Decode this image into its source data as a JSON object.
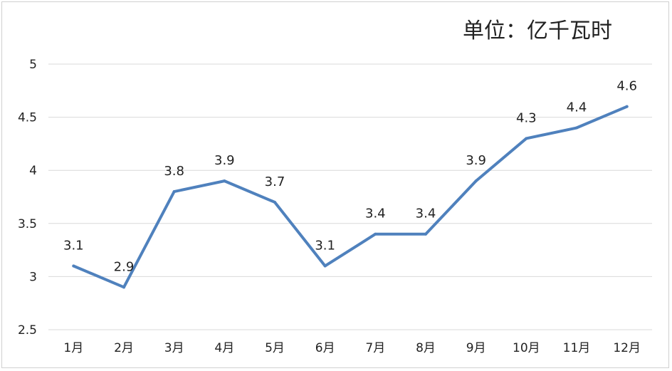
{
  "unit_label": "单位：亿千瓦时",
  "chart_data": {
    "type": "line",
    "title": "",
    "xlabel": "",
    "ylabel": "",
    "categories": [
      "1月",
      "2月",
      "3月",
      "4月",
      "5月",
      "6月",
      "7月",
      "8月",
      "9月",
      "10月",
      "11月",
      "12月"
    ],
    "series": [
      {
        "values": [
          3.1,
          2.9,
          3.8,
          3.9,
          3.7,
          3.1,
          3.4,
          3.4,
          3.9,
          4.3,
          4.4,
          4.6
        ],
        "labels": [
          "3.1",
          "2.9",
          "3.8",
          "3.9",
          "3.7",
          "3.1",
          "3.4",
          "3.4",
          "3.9",
          "4.3",
          "4.4",
          "4.6"
        ]
      }
    ],
    "ylim": [
      2.5,
      5
    ],
    "yticks": [
      "2.5",
      "3",
      "3.5",
      "4",
      "4.5",
      "5"
    ],
    "grid": true,
    "legend": "none",
    "line_color": "#4f81bd",
    "grid_color": "#d9d9d9"
  }
}
